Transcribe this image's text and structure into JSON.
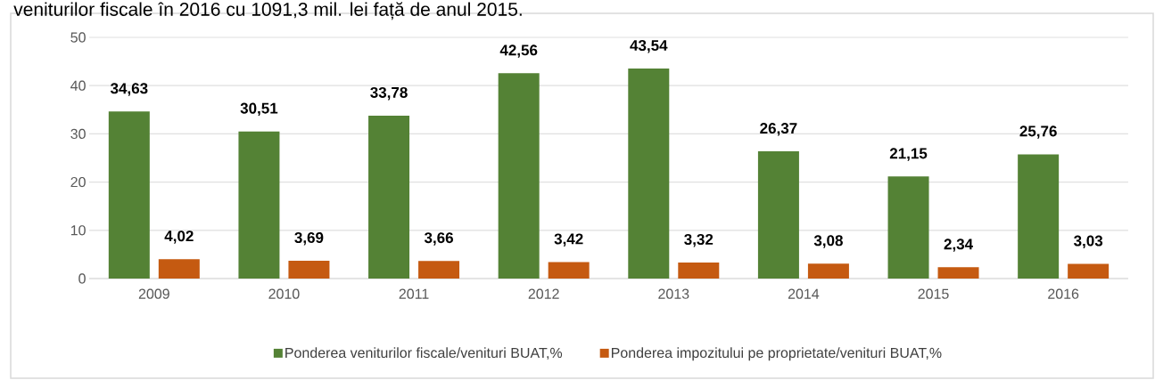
{
  "chart_data": {
    "type": "bar",
    "annotations": [
      "veniturilor fiscale în 2016 cu 1091,3 mil. lei față de anul 2015."
    ],
    "categories": [
      "2009",
      "2010",
      "2011",
      "2012",
      "2013",
      "2014",
      "2015",
      "2016"
    ],
    "series": [
      {
        "name": "Ponderea veniturilor fiscale/venituri BUAT,%",
        "color": "#548235",
        "values": [
          34.63,
          30.51,
          33.78,
          42.56,
          43.54,
          26.37,
          21.15,
          25.76
        ],
        "value_labels": [
          "34,63",
          "30,51",
          "33,78",
          "42,56",
          "43,54",
          "26,37",
          "21,15",
          "25,76"
        ]
      },
      {
        "name": "Ponderea impozitului pe proprietate/venituri BUAT,%",
        "color": "#C55A11",
        "values": [
          4.02,
          3.69,
          3.66,
          3.42,
          3.32,
          3.08,
          2.34,
          3.03
        ],
        "value_labels": [
          "4,02",
          "3,69",
          "3,66",
          "3,42",
          "3,32",
          "3,08",
          "2,34",
          "3,03"
        ]
      }
    ],
    "ylim": [
      0,
      50
    ],
    "yticks": [
      0,
      10,
      20,
      30,
      40,
      50
    ],
    "grid": "y",
    "legend": "bottom"
  }
}
